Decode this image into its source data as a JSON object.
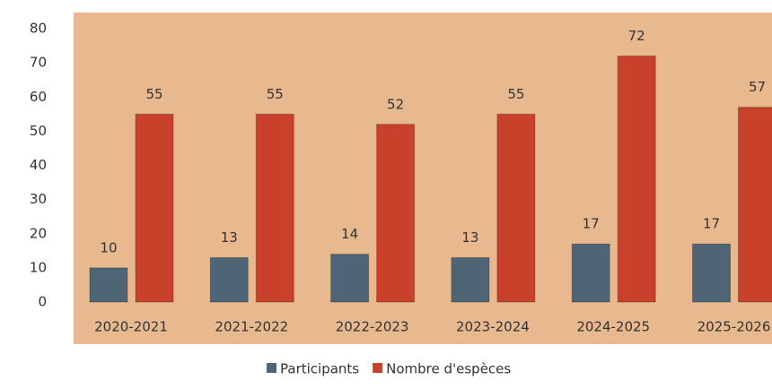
{
  "chart_data": {
    "type": "bar",
    "categories": [
      "2020-2021",
      "2021-2022",
      "2022-2023",
      "2023-2024",
      "2024-2025",
      "2025-2026"
    ],
    "series": [
      {
        "name": "Participants",
        "color": "#4d6574",
        "values": [
          10,
          13,
          14,
          13,
          17,
          17
        ]
      },
      {
        "name": "Nombre d'espèces",
        "color": "#c9412b",
        "values": [
          55,
          55,
          52,
          55,
          72,
          57
        ]
      }
    ],
    "ylim": [
      0,
      80
    ],
    "yticks": [
      0,
      10,
      20,
      30,
      40,
      50,
      60,
      70,
      80
    ],
    "grid": false,
    "legend": "bottom"
  }
}
